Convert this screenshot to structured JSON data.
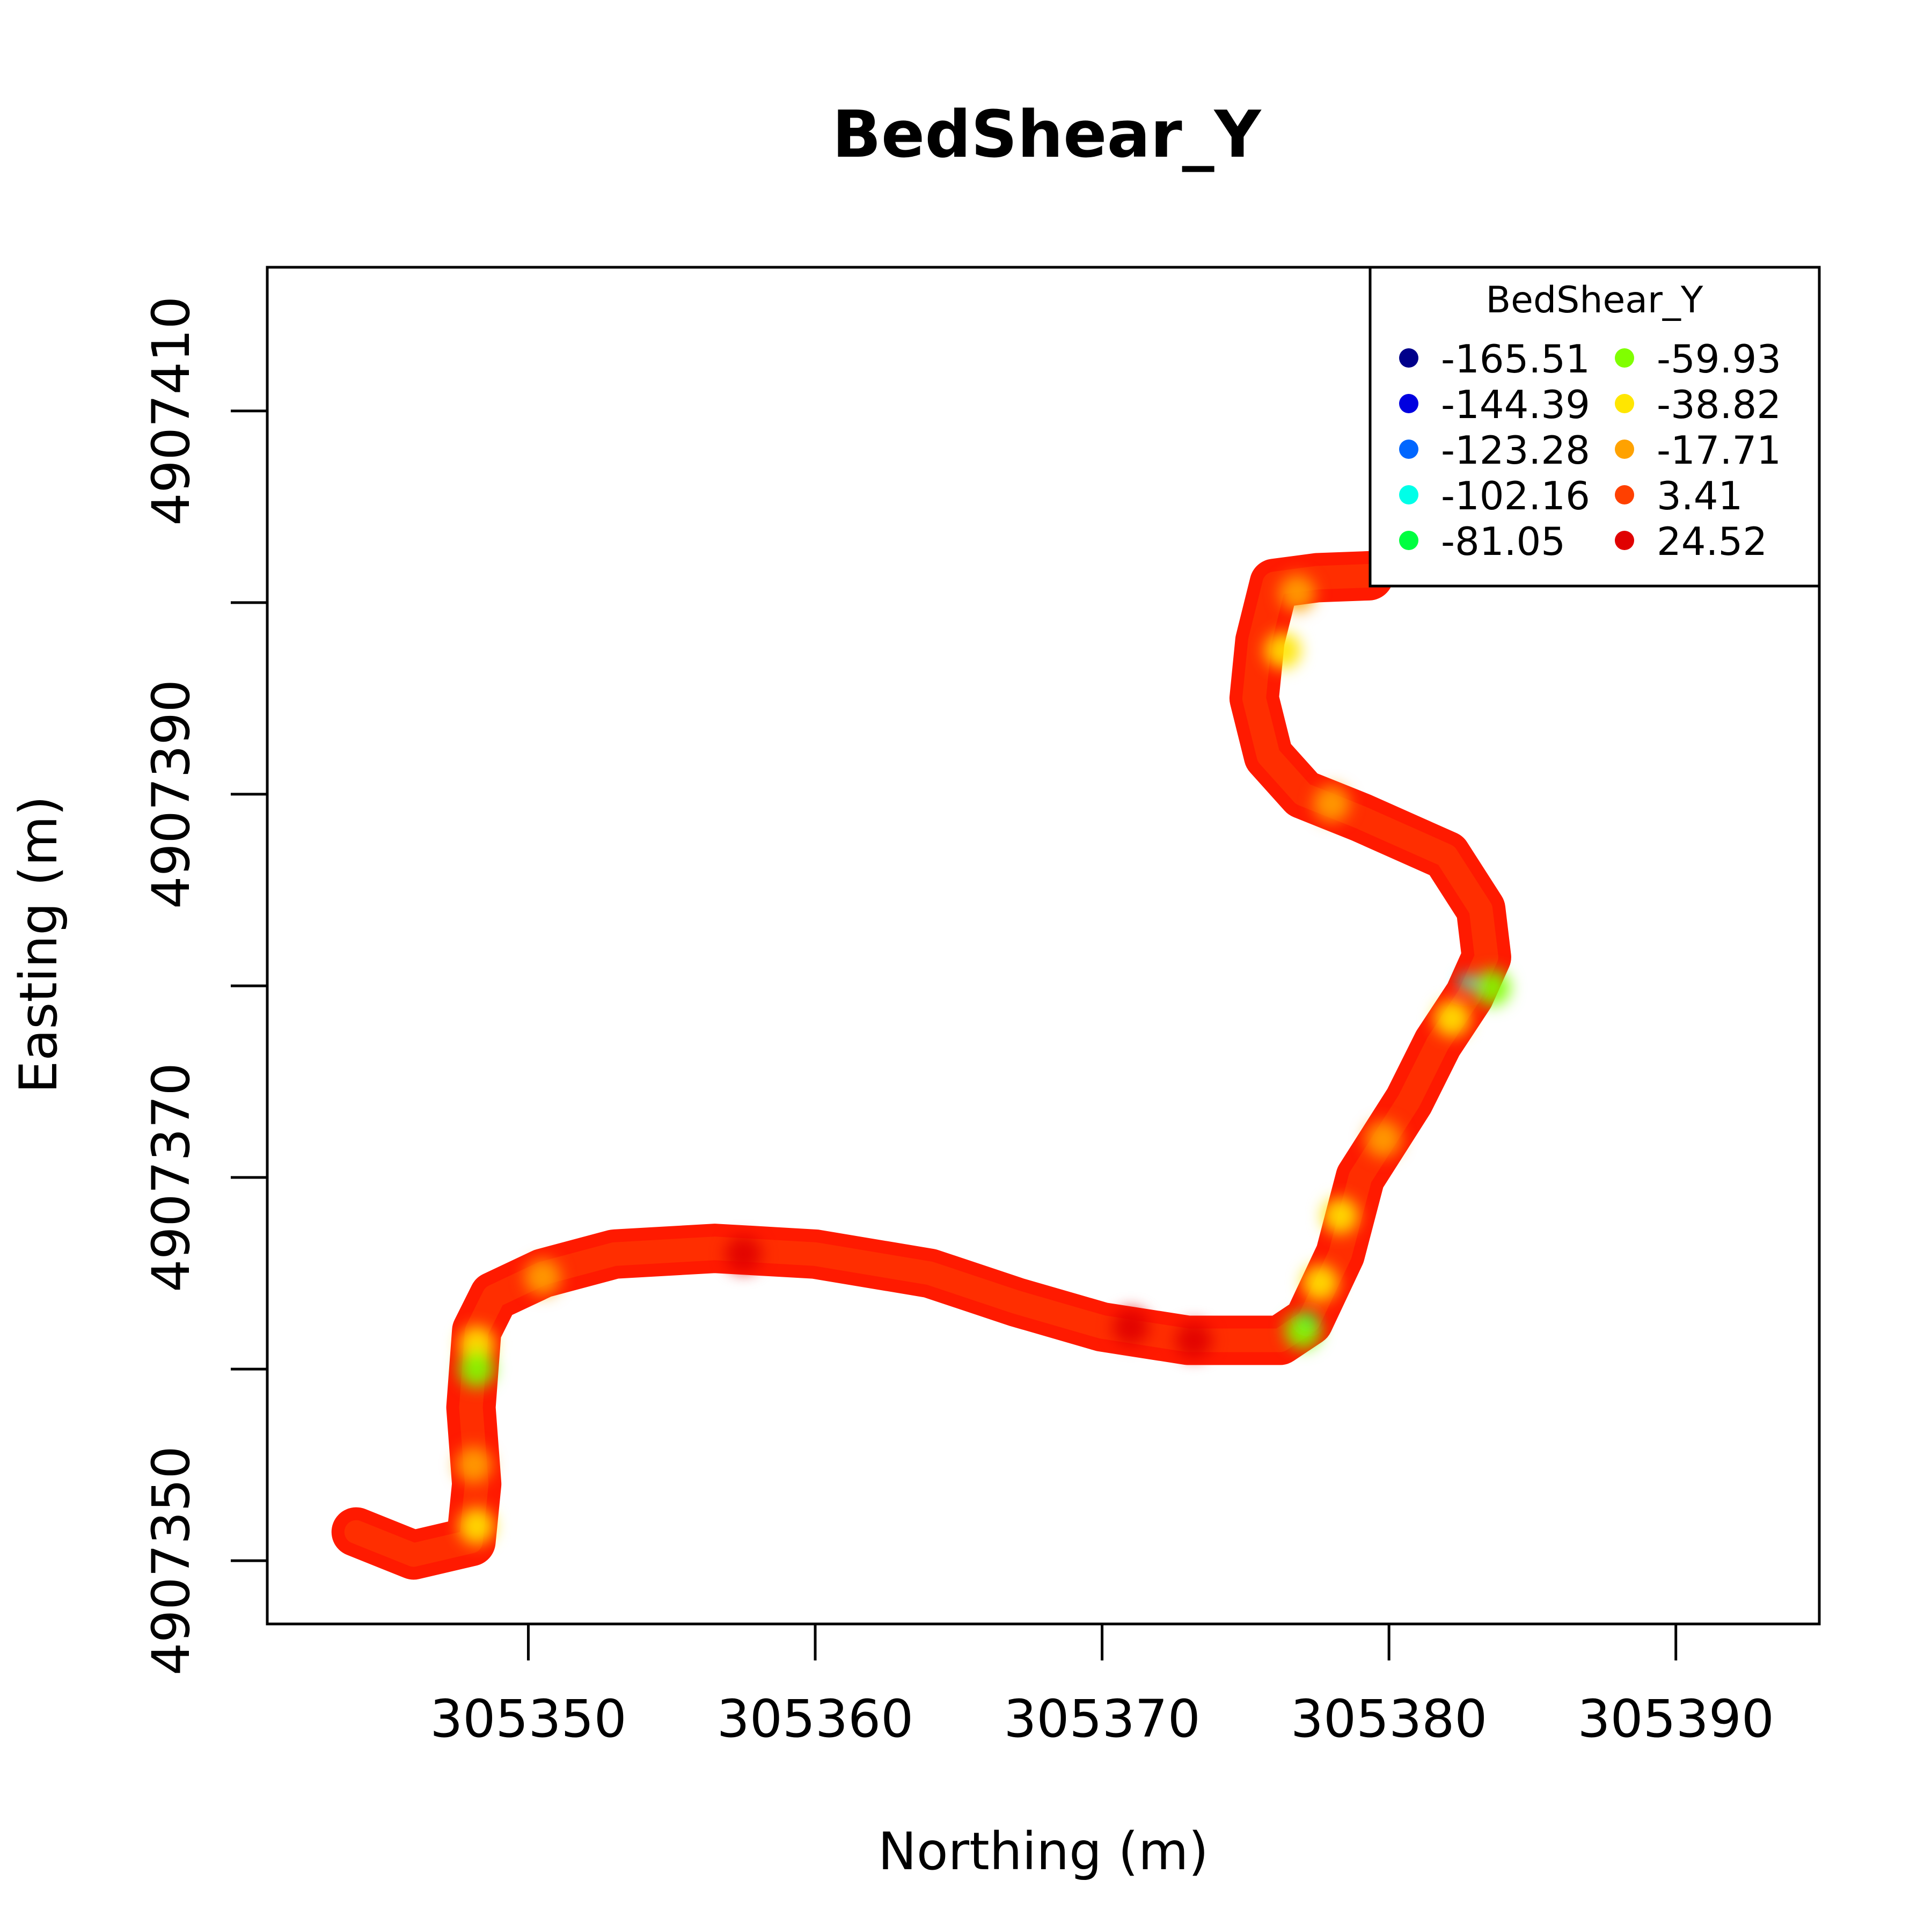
{
  "chart_data": {
    "type": "scatter",
    "title": "BedShear_Y",
    "xlabel": "Northing (m)",
    "ylabel": "Easting (m)",
    "xlim": [
      305340.9,
      305395
    ],
    "ylim": [
      4907346.7,
      4907417.5
    ],
    "x_ticks": [
      305350,
      305360,
      305370,
      305380,
      305390
    ],
    "x_tick_labels": [
      "305350",
      "305360",
      "305370",
      "305380",
      "305390"
    ],
    "y_ticks": [
      4907350,
      4907360,
      4907370,
      4907380,
      4907390,
      4907400,
      4907410
    ],
    "y_tick_labels": [
      "4907350",
      "",
      "4907370",
      "",
      "4907390",
      "",
      "4907410"
    ],
    "grid": false,
    "legend": {
      "title": "BedShear_Y",
      "placement": "top-right",
      "entries": [
        {
          "label": "-165.51",
          "color": "#00008B"
        },
        {
          "label": "-144.39",
          "color": "#0000E0"
        },
        {
          "label": "-123.28",
          "color": "#0066FF"
        },
        {
          "label": "-102.16",
          "color": "#00FFE8"
        },
        {
          "label": "-81.05",
          "color": "#00FF40"
        },
        {
          "label": "-59.93",
          "color": "#80FF00"
        },
        {
          "label": "-38.82",
          "color": "#FFE600"
        },
        {
          "label": "-17.71",
          "color": "#FFA200"
        },
        {
          "label": "3.41",
          "color": "#FF4000"
        },
        {
          "label": "24.52",
          "color": "#E00000"
        }
      ]
    },
    "river_centerline": [
      [
        305344.0,
        4907351.5
      ],
      [
        305346.0,
        4907350.3
      ],
      [
        305348.0,
        4907351.0
      ],
      [
        305348.2,
        4907354.0
      ],
      [
        305348.0,
        4907358.0
      ],
      [
        305348.2,
        4907362.0
      ],
      [
        305348.8,
        4907363.8
      ],
      [
        305350.5,
        4907365.0
      ],
      [
        305353.0,
        4907366.0
      ],
      [
        305356.5,
        4907366.3
      ],
      [
        305360.0,
        4907366.0
      ],
      [
        305364.0,
        4907365.0
      ],
      [
        305367.0,
        4907363.5
      ],
      [
        305370.0,
        4907362.2
      ],
      [
        305373.0,
        4907361.5
      ],
      [
        305376.2,
        4907361.5
      ],
      [
        305377.2,
        4907362.5
      ],
      [
        305378.3,
        4907366.0
      ],
      [
        305379.0,
        4907370.0
      ],
      [
        305380.7,
        4907374.0
      ],
      [
        305381.7,
        4907377.0
      ],
      [
        305382.8,
        4907379.5
      ],
      [
        305383.4,
        4907381.5
      ],
      [
        305383.2,
        4907384.0
      ],
      [
        305382.0,
        4907386.8
      ],
      [
        305379.0,
        4907388.8
      ],
      [
        305377.0,
        4907390.0
      ],
      [
        305375.8,
        4907392.0
      ],
      [
        305375.3,
        4907395.0
      ],
      [
        305375.5,
        4907398.0
      ],
      [
        305376.0,
        4907401.0
      ],
      [
        305377.5,
        4907401.3
      ],
      [
        305379.3,
        4907401.4
      ]
    ],
    "hotspots": [
      {
        "x": 305348.2,
        "y": 4907351.8,
        "value": -38.82
      },
      {
        "x": 305348.1,
        "y": 4907355.0,
        "value": -17.71
      },
      {
        "x": 305348.2,
        "y": 4907361.3,
        "value": -38.82
      },
      {
        "x": 305348.2,
        "y": 4907360.0,
        "value": -59.93
      },
      {
        "x": 305350.5,
        "y": 4907364.8,
        "value": -17.71
      },
      {
        "x": 305357.5,
        "y": 4907366.0,
        "value": 24.52
      },
      {
        "x": 305371.0,
        "y": 4907362.2,
        "value": 24.52
      },
      {
        "x": 305373.2,
        "y": 4907361.5,
        "value": 24.52
      },
      {
        "x": 305377.0,
        "y": 4907362.0,
        "value": -59.93
      },
      {
        "x": 305377.2,
        "y": 4907362.6,
        "value": -81.05
      },
      {
        "x": 305377.6,
        "y": 4907364.5,
        "value": -38.82
      },
      {
        "x": 305378.3,
        "y": 4907368.0,
        "value": -38.82
      },
      {
        "x": 305379.8,
        "y": 4907372.0,
        "value": -17.71
      },
      {
        "x": 305382.2,
        "y": 4907378.3,
        "value": -38.82
      },
      {
        "x": 305382.7,
        "y": 4907380.2,
        "value": -102.16
      },
      {
        "x": 305383.6,
        "y": 4907379.9,
        "value": -59.93
      },
      {
        "x": 305378.0,
        "y": 4907389.5,
        "value": -17.71
      },
      {
        "x": 305376.3,
        "y": 4907397.5,
        "value": -38.82
      },
      {
        "x": 305376.8,
        "y": 4907400.5,
        "value": -17.71
      }
    ]
  }
}
